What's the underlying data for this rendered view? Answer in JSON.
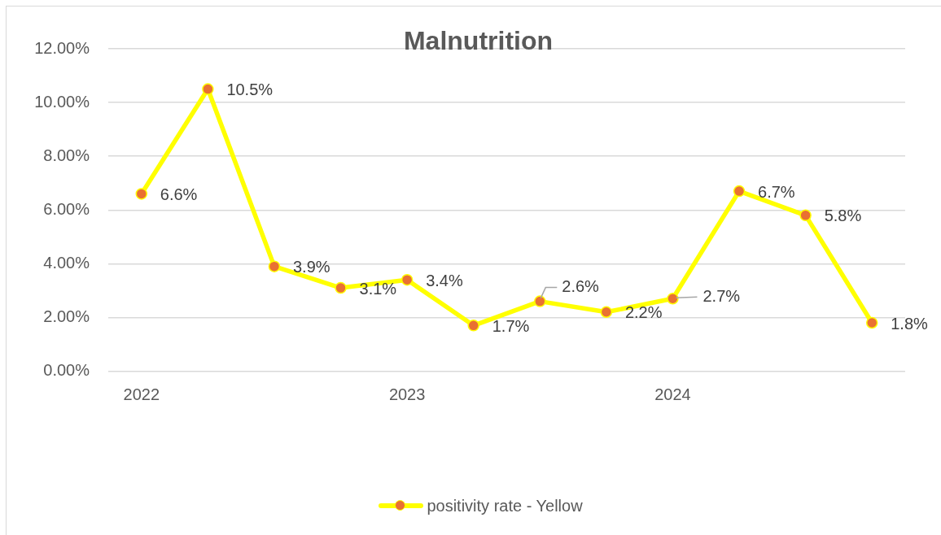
{
  "chart_data": {
    "type": "line",
    "title": "Malnutrition",
    "categories": [
      "2022",
      null,
      null,
      null,
      "2023",
      null,
      null,
      null,
      "2024",
      null,
      null,
      null
    ],
    "series": [
      {
        "name": "positivity rate - Yellow",
        "color": "#ffff00",
        "colors": [
          "#e97132",
          "#e97132",
          "#e97132",
          "#e97132",
          "#e97132",
          "#e97132",
          "#e97132",
          "#e97132",
          "#e97132",
          "#e97132",
          "#e97132",
          "#e97132"
        ],
        "values": [
          6.6,
          10.5,
          3.9,
          3.1,
          3.4,
          1.7,
          2.6,
          2.2,
          2.7,
          6.7,
          5.8,
          1.8
        ],
        "value_labels": [
          "6.6%",
          "10.5%",
          "3.9%",
          "3.1%",
          "3.4%",
          "1.7%",
          "2.6%",
          "2.2%",
          "2.7%",
          "6.7%",
          "5.8%",
          "1.8%"
        ]
      }
    ],
    "ylim": [
      0,
      12
    ],
    "yticks": [
      {
        "value": 0,
        "label": "0.00%"
      },
      {
        "value": 2,
        "label": "2.00%"
      },
      {
        "value": 4,
        "label": "4.00%"
      },
      {
        "value": 6,
        "label": "6.00%"
      },
      {
        "value": 8,
        "label": "8.00%"
      },
      {
        "value": 10,
        "label": "10.00%"
      },
      {
        "value": 12,
        "label": "12.00%"
      }
    ],
    "grid": "y",
    "legend": "bottom",
    "marker": "circle",
    "line_style": "solid"
  }
}
